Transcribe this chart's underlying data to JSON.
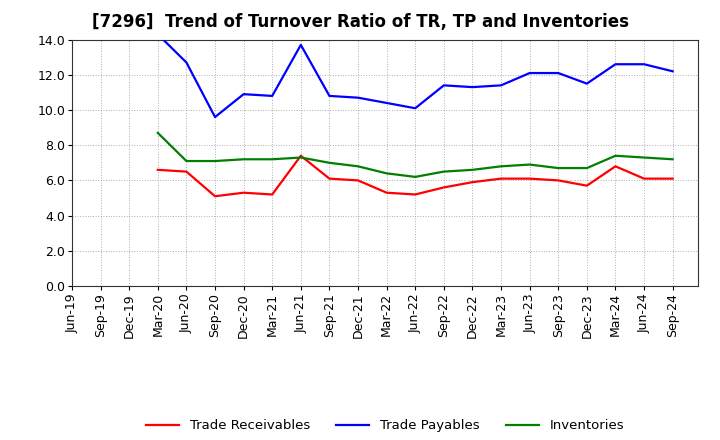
{
  "title": "[7296]  Trend of Turnover Ratio of TR, TP and Inventories",
  "labels": [
    "Jun-19",
    "Sep-19",
    "Dec-19",
    "Mar-20",
    "Jun-20",
    "Sep-20",
    "Dec-20",
    "Mar-21",
    "Jun-21",
    "Sep-21",
    "Dec-21",
    "Mar-22",
    "Jun-22",
    "Sep-22",
    "Dec-22",
    "Mar-23",
    "Jun-23",
    "Sep-23",
    "Dec-23",
    "Mar-24",
    "Jun-24",
    "Sep-24"
  ],
  "trade_receivables": [
    null,
    null,
    null,
    6.6,
    6.5,
    5.1,
    5.3,
    5.2,
    7.4,
    6.1,
    6.0,
    5.3,
    5.2,
    5.6,
    5.9,
    6.1,
    6.1,
    6.0,
    5.7,
    6.8,
    6.1,
    6.1
  ],
  "trade_payables": [
    null,
    null,
    null,
    14.3,
    12.7,
    9.6,
    10.9,
    10.8,
    13.7,
    10.8,
    10.7,
    10.4,
    10.1,
    11.4,
    11.3,
    11.4,
    12.1,
    12.1,
    11.5,
    12.6,
    12.6,
    12.2
  ],
  "inventories": [
    null,
    null,
    null,
    8.7,
    7.1,
    7.1,
    7.2,
    7.2,
    7.3,
    7.0,
    6.8,
    6.4,
    6.2,
    6.5,
    6.6,
    6.8,
    6.9,
    6.7,
    6.7,
    7.4,
    7.3,
    7.2
  ],
  "color_tr": "#ff0000",
  "color_tp": "#0000ff",
  "color_inv": "#008000",
  "ylim": [
    0.0,
    14.0
  ],
  "yticks": [
    0.0,
    2.0,
    4.0,
    6.0,
    8.0,
    10.0,
    12.0,
    14.0
  ],
  "title_fontsize": 12,
  "legend_fontsize": 9.5,
  "tick_fontsize": 9,
  "background_color": "#ffffff",
  "grid_color": "#999999"
}
